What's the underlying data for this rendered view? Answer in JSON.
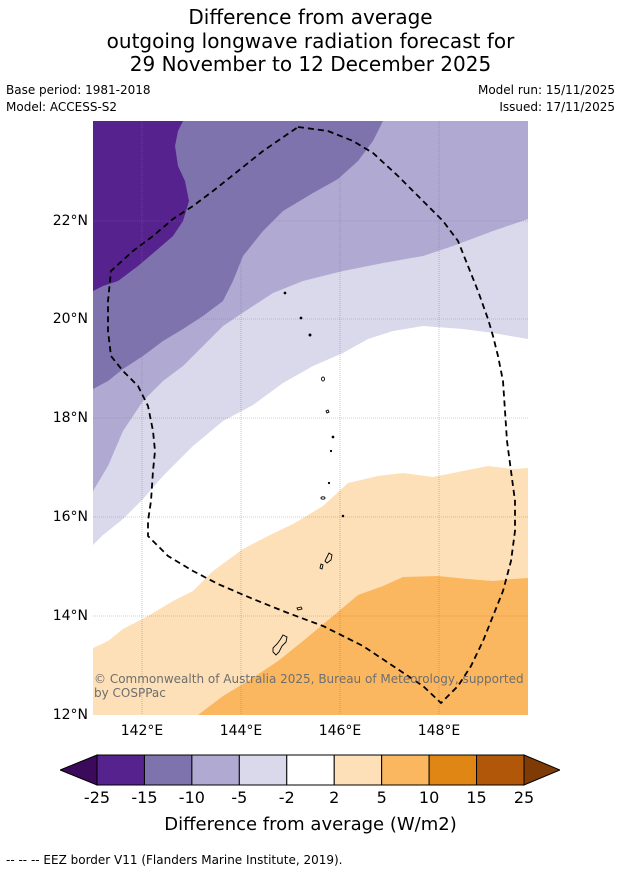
{
  "title": {
    "line1": "Difference from average",
    "line2": "outgoing longwave radiation forecast for",
    "line3": "29 November to 12 December 2025"
  },
  "meta": {
    "base_period": "Base period: 1981-2018",
    "model": "Model: ACCESS-S2",
    "model_run": "Model run: 15/11/2025",
    "issued": "Issued: 17/11/2025"
  },
  "map": {
    "lon_range": [
      141,
      149.8
    ],
    "lat_range": [
      12,
      24
    ],
    "lat_ticks": [
      "22°N",
      "20°N",
      "18°N",
      "16°N",
      "14°N",
      "12°N"
    ],
    "lon_ticks": [
      "142°E",
      "144°E",
      "146°E",
      "148°E"
    ],
    "credit": "© Commonwealth of Australia 2025, Bureau of Meteorology, supported by COSPPac",
    "colors": {
      "c1": "#56228d",
      "c2": "#7f73ae",
      "c3": "#b0aad2",
      "c4": "#d9d9eb",
      "c5": "#ffffff",
      "c6": "#fde0b7",
      "c7": "#fbb75f"
    }
  },
  "colorbar": {
    "title": "Difference from average (W/m2)",
    "labels": [
      "-25",
      "-15",
      "-10",
      "-5",
      "-2",
      "2",
      "5",
      "10",
      "15",
      "25"
    ],
    "colors": [
      "#56228d",
      "#7f73ae",
      "#b0aad2",
      "#d9d9eb",
      "#ffffff",
      "#fde0b7",
      "#fbb75f",
      "#e08614",
      "#b1570a"
    ],
    "end_low": "#3b0a5a",
    "end_high": "#7f3b06"
  },
  "legend": {
    "eez": "--  --  -- EEZ border V11 (Flanders Marine Institute, 2019)."
  }
}
